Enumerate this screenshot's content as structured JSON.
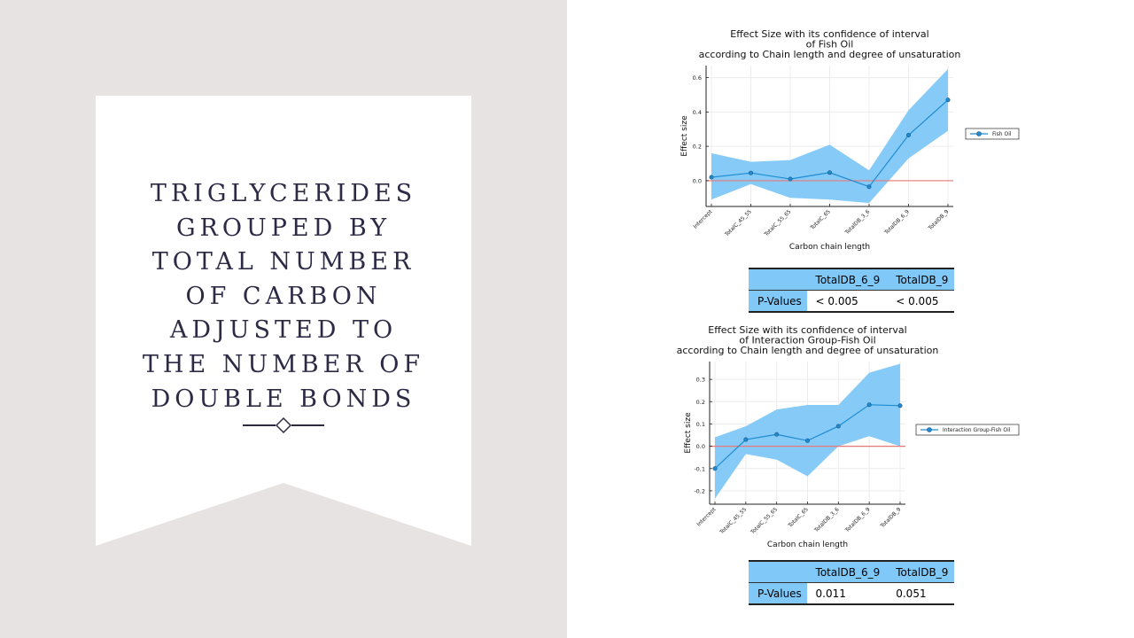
{
  "slide": {
    "title": "TRIGLYCERIDES\nGROUPED BY\nTOTAL NUMBER\nOF CARBON\nADJUSTED TO\nTHE NUMBER OF\nDOUBLE BONDS",
    "colors": {
      "background": "#e7e3e2",
      "banner": "#ffffff",
      "title": "#2c2a45"
    },
    "divider_icon": "diamond-divider-icon"
  },
  "chart_data": [
    {
      "type": "line",
      "title": "Effect Size with its confidence of interval\nof Fish Oil\naccording to Chain length and degree of unsaturation",
      "xlabel": "Carbon chain length",
      "ylabel": "Effect size",
      "categories": [
        "Intercept",
        "TotalC_45_55",
        "TotalC_55_65",
        "TotalC_65",
        "TotalDB_3_6",
        "TotalDB_6_9",
        "TotalDB_9"
      ],
      "series": [
        {
          "name": "Fish Oil",
          "values": [
            0.02,
            0.045,
            0.01,
            0.047,
            -0.035,
            0.265,
            0.47
          ],
          "ci_lower": [
            -0.11,
            -0.02,
            -0.1,
            -0.11,
            -0.13,
            0.13,
            0.29
          ],
          "ci_upper": [
            0.16,
            0.11,
            0.12,
            0.21,
            0.06,
            0.41,
            0.65
          ]
        }
      ],
      "ylim": [
        -0.15,
        0.67
      ],
      "yticks": [
        0.0,
        0.2,
        0.4,
        0.6
      ],
      "ytick_labels": [
        "0.0",
        "0.2",
        "0.4",
        "0.6"
      ],
      "reference_line": 0,
      "grid": true,
      "legend": "right",
      "colors": {
        "line": "#1f8ad0",
        "band": "#7fc8f8",
        "reference": "#e87878"
      }
    },
    {
      "type": "line",
      "title": "Effect Size with its confidence of interval\nof Interaction Group-Fish Oil\naccording to Chain length and degree of unsaturation",
      "xlabel": "Carbon chain length",
      "ylabel": "Effect size",
      "categories": [
        "Intercept",
        "TotalC_45_55",
        "TotalC_55_65",
        "TotalC_65",
        "TotalDB_3_6",
        "TotalDB_6_9",
        "TotalDB_9"
      ],
      "series": [
        {
          "name": "Interaction Group-Fish Oil",
          "values": [
            -0.1,
            0.03,
            0.053,
            0.025,
            0.09,
            0.186,
            0.182
          ],
          "ci_lower": [
            -0.235,
            -0.035,
            -0.06,
            -0.135,
            0.0,
            0.045,
            0.0
          ],
          "ci_upper": [
            0.04,
            0.09,
            0.165,
            0.185,
            0.185,
            0.33,
            0.37
          ]
        }
      ],
      "ylim": [
        -0.26,
        0.38
      ],
      "yticks": [
        -0.2,
        -0.1,
        0.0,
        0.1,
        0.2,
        0.3
      ],
      "ytick_labels": [
        "-0.2",
        "-0.1",
        "0.0",
        "0.1",
        "0.2",
        "0.3"
      ],
      "reference_line": 0,
      "grid": true,
      "legend": "right",
      "colors": {
        "line": "#1f8ad0",
        "band": "#7fc8f8",
        "reference": "#e87878"
      }
    }
  ],
  "tables": [
    {
      "header": [
        "",
        "TotalDB_6_9",
        "TotalDB_9"
      ],
      "row_label": "P-Values",
      "values": [
        "< 0.005",
        "< 0.005"
      ]
    },
    {
      "header": [
        "",
        "TotalDB_6_9",
        "TotalDB_9"
      ],
      "row_label": "P-Values",
      "values": [
        "0.011",
        "0.051"
      ]
    }
  ]
}
